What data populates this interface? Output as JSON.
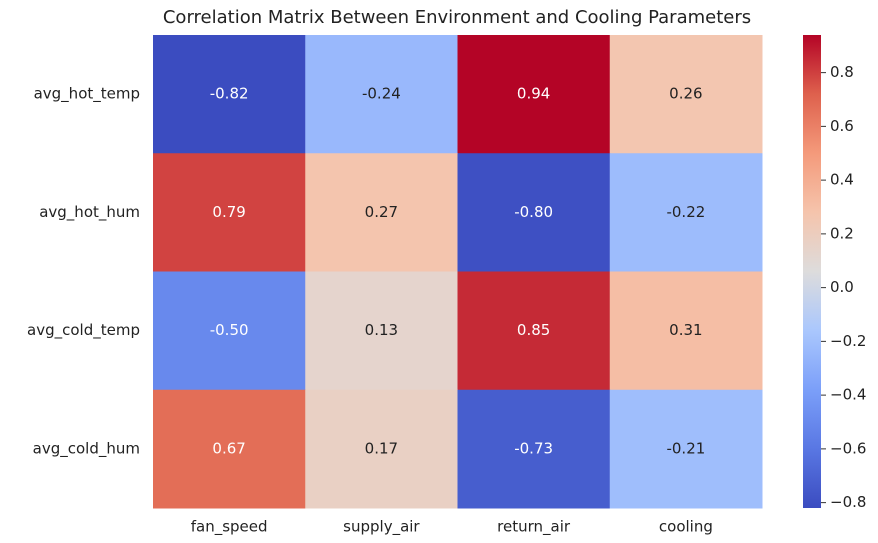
{
  "chart_data": {
    "type": "heatmap",
    "title": "Correlation Matrix Between Environment and Cooling Parameters",
    "rows": [
      "avg_hot_temp",
      "avg_hot_hum",
      "avg_cold_temp",
      "avg_cold_hum"
    ],
    "columns": [
      "fan_speed",
      "supply_air",
      "return_air",
      "cooling"
    ],
    "values": [
      [
        -0.82,
        -0.24,
        0.94,
        0.26
      ],
      [
        0.79,
        0.27,
        -0.8,
        -0.22
      ],
      [
        -0.5,
        0.13,
        0.85,
        0.31
      ],
      [
        0.67,
        0.17,
        -0.73,
        -0.21
      ]
    ],
    "value_labels": [
      [
        "-0.82",
        "-0.24",
        "0.94",
        "0.26"
      ],
      [
        "0.79",
        "0.27",
        "-0.80",
        "-0.22"
      ],
      [
        "-0.50",
        "0.13",
        "0.85",
        "0.31"
      ],
      [
        "0.67",
        "0.17",
        "-0.73",
        "-0.21"
      ]
    ],
    "colormap": "coolwarm",
    "zlim": [
      -0.82,
      0.94
    ],
    "zticks": [
      {
        "value": -0.8,
        "label": "−0.8"
      },
      {
        "value": -0.6,
        "label": "−0.6"
      },
      {
        "value": -0.4,
        "label": "−0.4"
      },
      {
        "value": -0.2,
        "label": "−0.2"
      },
      {
        "value": 0,
        "label": "0.0"
      },
      0.2,
      0.4,
      0.6,
      0.8
    ]
  }
}
